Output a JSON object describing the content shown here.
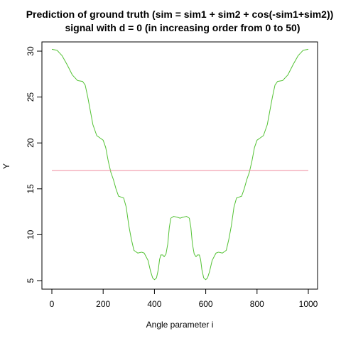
{
  "chart_data": {
    "type": "line",
    "title_line1": "Prediction of ground truth (sim = sim1 + sim2 + cos(-sim1+sim2))",
    "title_line2": "signal with d = 0  (in increasing order from 0 to 50)",
    "xlabel": "Angle parameter i",
    "ylabel": "Y",
    "xlim": [
      0,
      1000
    ],
    "ylim": [
      5,
      30
    ],
    "xticks": [
      0,
      200,
      400,
      600,
      800,
      1000
    ],
    "yticks": [
      5,
      10,
      15,
      20,
      25,
      30
    ],
    "xtick_labels": [
      "0",
      "200",
      "400",
      "600",
      "800",
      "1000"
    ],
    "ytick_labels": [
      "5",
      "10",
      "15",
      "20",
      "25",
      "30"
    ],
    "grid": false,
    "series": [
      {
        "color": "#53c234",
        "points": [
          [
            0,
            30.2
          ],
          [
            20,
            30.1
          ],
          [
            40,
            29.5
          ],
          [
            60,
            28.5
          ],
          [
            80,
            27.4
          ],
          [
            100,
            26.8
          ],
          [
            120,
            26.7
          ],
          [
            130,
            26.3
          ],
          [
            140,
            25.0
          ],
          [
            150,
            23.5
          ],
          [
            160,
            22.0
          ],
          [
            175,
            20.8
          ],
          [
            190,
            20.5
          ],
          [
            200,
            20.3
          ],
          [
            210,
            19.5
          ],
          [
            220,
            18.0
          ],
          [
            230,
            16.8
          ],
          [
            240,
            16.0
          ],
          [
            250,
            15.0
          ],
          [
            260,
            14.2
          ],
          [
            270,
            14.1
          ],
          [
            280,
            14.0
          ],
          [
            290,
            13.0
          ],
          [
            300,
            11.0
          ],
          [
            310,
            9.5
          ],
          [
            320,
            8.3
          ],
          [
            335,
            8.0
          ],
          [
            350,
            8.1
          ],
          [
            360,
            8.0
          ],
          [
            375,
            7.2
          ],
          [
            385,
            6.0
          ],
          [
            393,
            5.3
          ],
          [
            400,
            5.1
          ],
          [
            408,
            5.3
          ],
          [
            415,
            6.2
          ],
          [
            420,
            7.3
          ],
          [
            425,
            7.8
          ],
          [
            432,
            7.8
          ],
          [
            438,
            7.6
          ],
          [
            445,
            7.9
          ],
          [
            452,
            9.0
          ],
          [
            458,
            10.8
          ],
          [
            464,
            11.8
          ],
          [
            475,
            12.0
          ],
          [
            490,
            11.9
          ],
          [
            500,
            11.8
          ],
          [
            510,
            11.9
          ],
          [
            525,
            12.0
          ],
          [
            536,
            11.8
          ],
          [
            542,
            10.8
          ],
          [
            548,
            9.0
          ],
          [
            555,
            7.9
          ],
          [
            562,
            7.6
          ],
          [
            568,
            7.8
          ],
          [
            575,
            7.8
          ],
          [
            580,
            7.3
          ],
          [
            585,
            6.2
          ],
          [
            592,
            5.3
          ],
          [
            600,
            5.1
          ],
          [
            607,
            5.3
          ],
          [
            615,
            6.0
          ],
          [
            625,
            7.2
          ],
          [
            640,
            8.0
          ],
          [
            650,
            8.1
          ],
          [
            665,
            8.0
          ],
          [
            680,
            8.3
          ],
          [
            690,
            9.5
          ],
          [
            700,
            11.0
          ],
          [
            710,
            13.0
          ],
          [
            720,
            14.0
          ],
          [
            730,
            14.1
          ],
          [
            740,
            14.2
          ],
          [
            750,
            15.0
          ],
          [
            760,
            16.0
          ],
          [
            770,
            16.8
          ],
          [
            780,
            18.0
          ],
          [
            790,
            19.5
          ],
          [
            800,
            20.3
          ],
          [
            810,
            20.5
          ],
          [
            825,
            20.8
          ],
          [
            840,
            22.0
          ],
          [
            850,
            23.5
          ],
          [
            860,
            25.0
          ],
          [
            870,
            26.3
          ],
          [
            880,
            26.7
          ],
          [
            900,
            26.8
          ],
          [
            920,
            27.4
          ],
          [
            940,
            28.5
          ],
          [
            960,
            29.5
          ],
          [
            980,
            30.1
          ],
          [
            1000,
            30.2
          ]
        ]
      },
      {
        "color": "#ef8a9e",
        "points": [
          [
            0,
            17.0
          ],
          [
            1000,
            17.0
          ]
        ]
      }
    ]
  }
}
